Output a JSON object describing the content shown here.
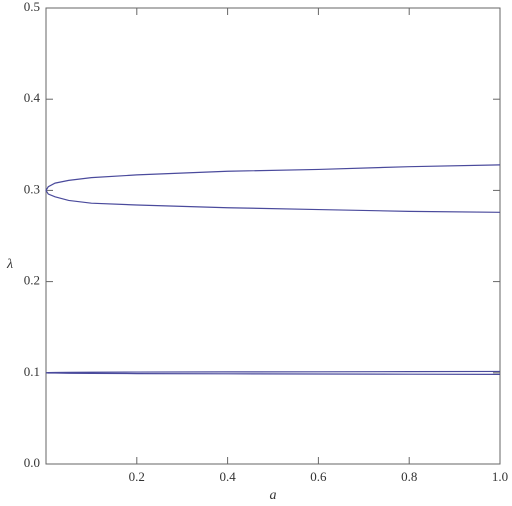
{
  "chart_data": {
    "type": "line",
    "x_label": "a",
    "y_label": "λ",
    "xlim": [
      0,
      1
    ],
    "ylim": [
      0,
      0.5
    ],
    "xticks": [
      0.2,
      0.4,
      0.6,
      0.8,
      {
        "value": 1,
        "label": "1.0"
      }
    ],
    "yticks": [
      {
        "value": 0,
        "label": "0.0"
      },
      0.1,
      0.2,
      0.3,
      0.4,
      0.5
    ],
    "series": [
      {
        "color": "#4a4a9c",
        "x": [
          1,
          0.8,
          0.6,
          0.4,
          0.2,
          0.1,
          0.05,
          0.02,
          0.005,
          0,
          0.005,
          0.02,
          0.05,
          0.1,
          0.2,
          0.4,
          0.6,
          0.8,
          1
        ],
        "values": [
          0.328,
          0.326,
          0.323,
          0.321,
          0.317,
          0.314,
          0.311,
          0.308,
          0.304,
          0.3,
          0.296,
          0.293,
          0.289,
          0.286,
          0.284,
          0.281,
          0.279,
          0.277,
          0.276
        ]
      },
      {
        "color": "#4a4a9c",
        "x": [
          1,
          0.8,
          0.6,
          0.4,
          0.2,
          0.1,
          0.05,
          0.02,
          0.005,
          0,
          0.005,
          0.02,
          0.05,
          0.1,
          0.2,
          0.4,
          0.6,
          0.8,
          1
        ],
        "values": [
          0.1015,
          0.1013,
          0.1011,
          0.101,
          0.1008,
          0.1006,
          0.1005,
          0.1003,
          0.1002,
          0.1,
          0.0998,
          0.0997,
          0.0995,
          0.0993,
          0.0991,
          0.0989,
          0.0987,
          0.0985,
          0.0983
        ]
      }
    ]
  }
}
